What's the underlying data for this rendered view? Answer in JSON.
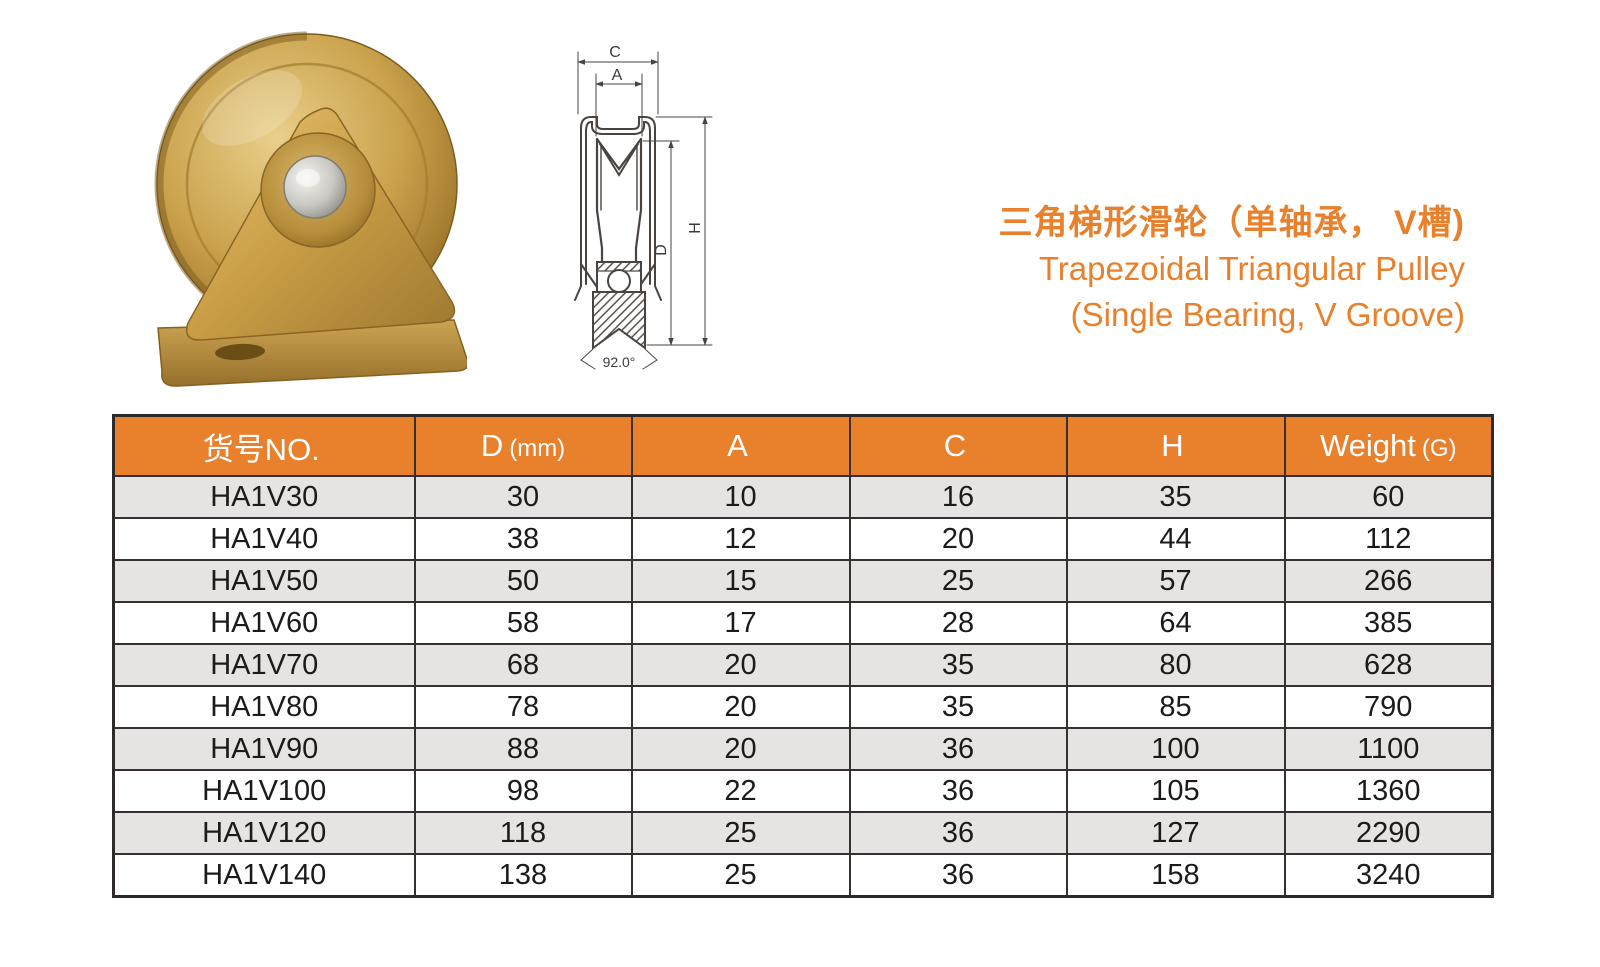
{
  "title": {
    "zh": "三角梯形滑轮（单轴承， V槽)",
    "en_line1": "Trapezoidal Triangular Pulley",
    "en_line2": "(Single Bearing, V Groove)"
  },
  "photo": {
    "alt": "gold-zinc plated triangular bracket pulley with single bearing V-groove wheel"
  },
  "drawing": {
    "labels": {
      "outer_width": "C",
      "inner_width": "A",
      "diameter": "D",
      "height": "H",
      "groove_angle": "92.0°"
    }
  },
  "table": {
    "headers": [
      {
        "label": "货号NO.",
        "sub": ""
      },
      {
        "label": "D",
        "sub": "(mm)"
      },
      {
        "label": "A",
        "sub": ""
      },
      {
        "label": "C",
        "sub": ""
      },
      {
        "label": "H",
        "sub": ""
      },
      {
        "label": "Weight",
        "sub": "(G)"
      }
    ],
    "rows": [
      [
        "HA1V30",
        "30",
        "10",
        "16",
        "35",
        "60"
      ],
      [
        "HA1V40",
        "38",
        "12",
        "20",
        "44",
        "112"
      ],
      [
        "HA1V50",
        "50",
        "15",
        "25",
        "57",
        "266"
      ],
      [
        "HA1V60",
        "58",
        "17",
        "28",
        "64",
        "385"
      ],
      [
        "HA1V70",
        "68",
        "20",
        "35",
        "80",
        "628"
      ],
      [
        "HA1V80",
        "78",
        "20",
        "35",
        "85",
        "790"
      ],
      [
        "HA1V90",
        "88",
        "20",
        "36",
        "100",
        "1100"
      ],
      [
        "HA1V100",
        "98",
        "22",
        "36",
        "105",
        "1360"
      ],
      [
        "HA1V120",
        "118",
        "25",
        "36",
        "127",
        "2290"
      ],
      [
        "HA1V140",
        "138",
        "25",
        "36",
        "158",
        "3240"
      ]
    ]
  },
  "colors": {
    "accent_orange": "#E8802C",
    "stripe_gray": "#E5E4E2",
    "table_border": "#363130",
    "drawing_line": "#4a4440",
    "gold_light": "#e9cf8a",
    "gold_mid": "#c89c44",
    "gold_dark": "#8a6524"
  }
}
